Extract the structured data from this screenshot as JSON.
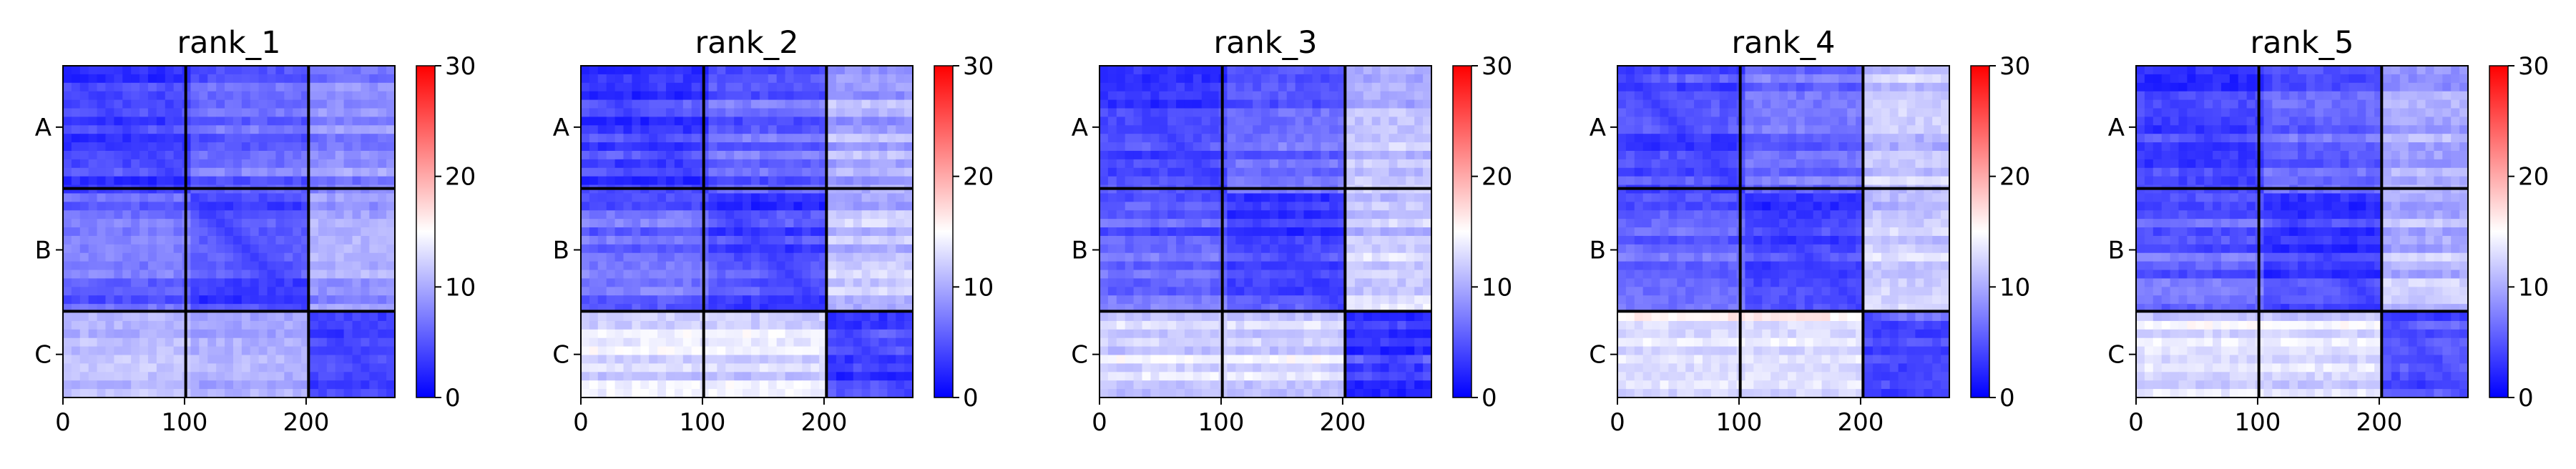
{
  "chart_data": [
    {
      "type": "heatmap",
      "title": "rank_1",
      "x_ticks": [
        "0",
        "100",
        "200"
      ],
      "y_ticks": [
        "A",
        "B",
        "C"
      ],
      "x_tick_values": [
        0,
        100,
        200
      ],
      "xlim": [
        0,
        273
      ],
      "chain_boundaries": [
        101,
        202
      ],
      "colorbar": {
        "ticks": [
          "0",
          "10",
          "20",
          "30"
        ],
        "range": [
          0,
          30
        ],
        "colormap": "bwr"
      },
      "block_mean_pae": [
        [
          4,
          6,
          8
        ],
        [
          6,
          4,
          9
        ],
        [
          11,
          10,
          4
        ]
      ]
    },
    {
      "type": "heatmap",
      "title": "rank_2",
      "x_ticks": [
        "0",
        "100",
        "200"
      ],
      "y_ticks": [
        "A",
        "B",
        "C"
      ],
      "x_tick_values": [
        0,
        100,
        200
      ],
      "xlim": [
        0,
        273
      ],
      "chain_boundaries": [
        101,
        202
      ],
      "colorbar": {
        "ticks": [
          "0",
          "10",
          "20",
          "30"
        ],
        "range": [
          0,
          30
        ],
        "colormap": "bwr"
      },
      "block_mean_pae": [
        [
          4,
          6,
          10
        ],
        [
          6,
          4,
          11
        ],
        [
          13,
          13,
          4
        ]
      ]
    },
    {
      "type": "heatmap",
      "title": "rank_3",
      "x_ticks": [
        "0",
        "100",
        "200"
      ],
      "y_ticks": [
        "A",
        "B",
        "C"
      ],
      "x_tick_values": [
        0,
        100,
        200
      ],
      "xlim": [
        0,
        273
      ],
      "chain_boundaries": [
        101,
        202
      ],
      "colorbar": {
        "ticks": [
          "0",
          "10",
          "20",
          "30"
        ],
        "range": [
          0,
          30
        ],
        "colormap": "bwr"
      },
      "block_mean_pae": [
        [
          4,
          6,
          11
        ],
        [
          6,
          4,
          12
        ],
        [
          13,
          13,
          4
        ]
      ]
    },
    {
      "type": "heatmap",
      "title": "rank_4",
      "x_ticks": [
        "0",
        "100",
        "200"
      ],
      "y_ticks": [
        "A",
        "B",
        "C"
      ],
      "x_tick_values": [
        0,
        100,
        200
      ],
      "xlim": [
        0,
        273
      ],
      "chain_boundaries": [
        101,
        202
      ],
      "colorbar": {
        "ticks": [
          "0",
          "10",
          "20",
          "30"
        ],
        "range": [
          0,
          30
        ],
        "colormap": "bwr"
      },
      "block_mean_pae": [
        [
          4,
          6,
          11
        ],
        [
          6,
          4,
          12
        ],
        [
          14,
          14,
          5
        ]
      ]
    },
    {
      "type": "heatmap",
      "title": "rank_5",
      "x_ticks": [
        "0",
        "100",
        "200"
      ],
      "y_ticks": [
        "A",
        "B",
        "C"
      ],
      "x_tick_values": [
        0,
        100,
        200
      ],
      "xlim": [
        0,
        273
      ],
      "chain_boundaries": [
        101,
        202
      ],
      "colorbar": {
        "ticks": [
          "0",
          "10",
          "20",
          "30"
        ],
        "range": [
          0,
          30
        ],
        "colormap": "bwr"
      },
      "block_mean_pae": [
        [
          4,
          6,
          10
        ],
        [
          6,
          4,
          11
        ],
        [
          13,
          13,
          5
        ]
      ]
    }
  ],
  "colors": {
    "low": "#0000ff",
    "mid": "#ffffff",
    "high": "#ff0000",
    "boundary": "#000000"
  }
}
